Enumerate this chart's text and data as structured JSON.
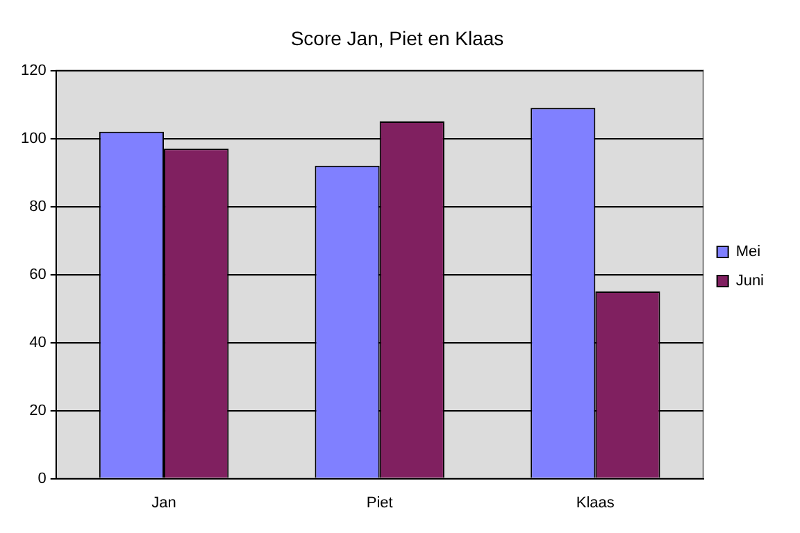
{
  "chart_data": {
    "type": "bar",
    "title": "Score Jan, Piet en Klaas",
    "categories": [
      "Jan",
      "Piet",
      "Klaas"
    ],
    "series": [
      {
        "name": "Mei",
        "color": "#8080ff",
        "values": [
          102,
          92,
          109
        ]
      },
      {
        "name": "Juni",
        "color": "#802060",
        "values": [
          97,
          105,
          55
        ]
      }
    ],
    "ylim": [
      0,
      120
    ],
    "yticks": [
      0,
      20,
      40,
      60,
      80,
      100,
      120
    ],
    "grid": "y",
    "legend": "right"
  }
}
